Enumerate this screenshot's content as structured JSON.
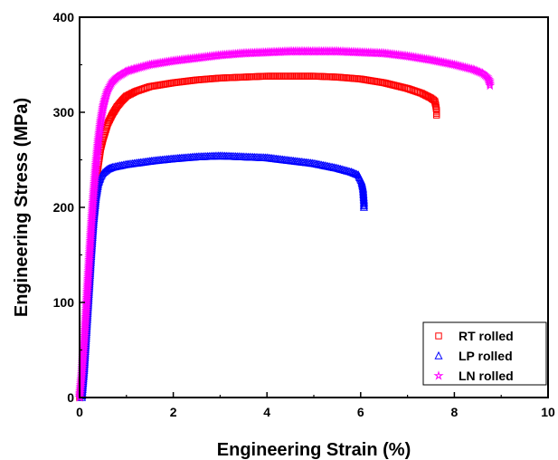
{
  "chart_data": {
    "type": "scatter",
    "title": "",
    "xlabel": "Engineering Strain (%)",
    "ylabel": "Engineering Stress (MPa)",
    "xlim": [
      0,
      10
    ],
    "ylim": [
      0,
      400
    ],
    "xticks": [
      0,
      2,
      4,
      6,
      8,
      10
    ],
    "yticks": [
      0,
      100,
      200,
      300,
      400
    ],
    "grid": false,
    "legend_position": "bottom-right",
    "series": [
      {
        "name": "RT rolled",
        "color": "#ff0000",
        "marker": "square",
        "x": [
          0.0,
          0.05,
          0.1,
          0.15,
          0.2,
          0.25,
          0.3,
          0.35,
          0.4,
          0.45,
          0.5,
          0.55,
          0.6,
          0.7,
          0.8,
          0.9,
          1.0,
          1.2,
          1.5,
          2.0,
          2.5,
          3.0,
          3.5,
          4.0,
          4.5,
          5.0,
          5.5,
          6.0,
          6.5,
          7.0,
          7.3,
          7.5,
          7.58,
          7.6,
          7.62,
          7.62
        ],
        "y": [
          0,
          20,
          50,
          85,
          120,
          155,
          190,
          220,
          245,
          262,
          272,
          280,
          288,
          298,
          306,
          312,
          317,
          322,
          327,
          331,
          334,
          336,
          337,
          338,
          338,
          338,
          337,
          335,
          331,
          325,
          320,
          315,
          312,
          308,
          302,
          297
        ]
      },
      {
        "name": "LP rolled",
        "color": "#0000ff",
        "marker": "triangle",
        "x": [
          0.05,
          0.1,
          0.15,
          0.2,
          0.25,
          0.3,
          0.35,
          0.4,
          0.45,
          0.5,
          0.55,
          0.6,
          0.7,
          0.8,
          1.0,
          1.3,
          1.6,
          2.0,
          2.5,
          3.0,
          3.5,
          4.0,
          4.5,
          5.0,
          5.5,
          5.8,
          5.95,
          6.02,
          6.05,
          6.06,
          6.07,
          6.07
        ],
        "y": [
          0,
          30,
          70,
          110,
          150,
          185,
          210,
          225,
          232,
          236,
          238,
          240,
          242,
          243,
          245,
          247,
          249,
          251,
          253,
          254,
          253,
          252,
          249,
          246,
          241,
          237,
          234,
          227,
          220,
          213,
          206,
          200
        ]
      },
      {
        "name": "LN rolled",
        "color": "#ff00ff",
        "marker": "star",
        "x": [
          0.0,
          0.05,
          0.1,
          0.15,
          0.2,
          0.25,
          0.3,
          0.35,
          0.4,
          0.45,
          0.5,
          0.55,
          0.6,
          0.7,
          0.8,
          0.9,
          1.0,
          1.2,
          1.5,
          2.0,
          2.5,
          3.0,
          3.5,
          4.0,
          4.5,
          5.0,
          5.5,
          6.0,
          6.5,
          7.0,
          7.5,
          8.0,
          8.4,
          8.6,
          8.7,
          8.75,
          8.76
        ],
        "y": [
          0,
          25,
          60,
          100,
          140,
          180,
          215,
          245,
          270,
          290,
          305,
          315,
          323,
          332,
          337,
          340,
          343,
          346,
          350,
          354,
          357,
          360,
          362,
          363,
          364,
          364,
          364,
          363,
          362,
          359,
          355,
          350,
          345,
          341,
          337,
          333,
          328
        ]
      }
    ]
  }
}
